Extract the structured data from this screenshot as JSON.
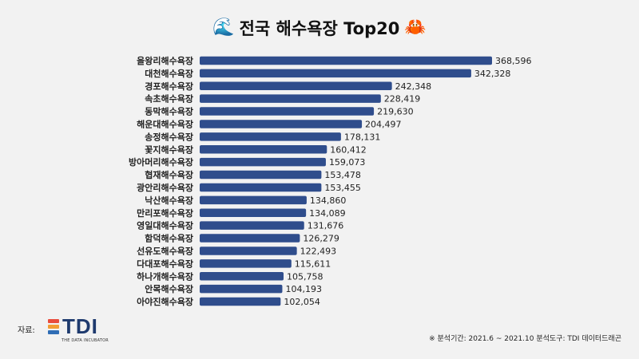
{
  "header": {
    "title": "전국 해수욕장 Top20",
    "left_emoji": "🌊",
    "right_emoji": "🦀"
  },
  "footer": {
    "source_label": "자료:",
    "logo_text": "TDI",
    "logo_sub": "THE DATA INCUBATOR",
    "logo_colors": [
      "#e94b3c",
      "#f39c34",
      "#2f6db5"
    ],
    "note": "※ 분석기간: 2021.6 ~ 2021.10   분석도구: TDI 데이터드래곤"
  },
  "chart_data": {
    "type": "bar",
    "orientation": "horizontal",
    "bar_color": "#2f4d8c",
    "categories": [
      "을왕리해수욕장",
      "대천해수욕장",
      "경포해수욕장",
      "속초해수욕장",
      "동막해수욕장",
      "해운대해수욕장",
      "송정해수욕장",
      "꽃지해수욕장",
      "방아머리해수욕장",
      "협재해수욕장",
      "광안리해수욕장",
      "낙산해수욕장",
      "만리포해수욕장",
      "영일대해수욕장",
      "함덕해수욕장",
      "선유도해수욕장",
      "다대포해수욕장",
      "하나개해수욕장",
      "안목해수욕장",
      "아야진해수욕장"
    ],
    "values": [
      368596,
      342328,
      242348,
      228419,
      219630,
      204497,
      178131,
      160412,
      159073,
      153478,
      153455,
      134860,
      134089,
      131676,
      126279,
      122493,
      115611,
      105758,
      104193,
      102054
    ],
    "value_labels": [
      "368,596",
      "342,328",
      "242,348",
      "228,419",
      "219,630",
      "204,497",
      "178,131",
      "160,412",
      "159,073",
      "153,478",
      "153,455",
      "134,860",
      "134,089",
      "131,676",
      "126,279",
      "122,493",
      "115,611",
      "105,758",
      "104,193",
      "102,054"
    ]
  }
}
